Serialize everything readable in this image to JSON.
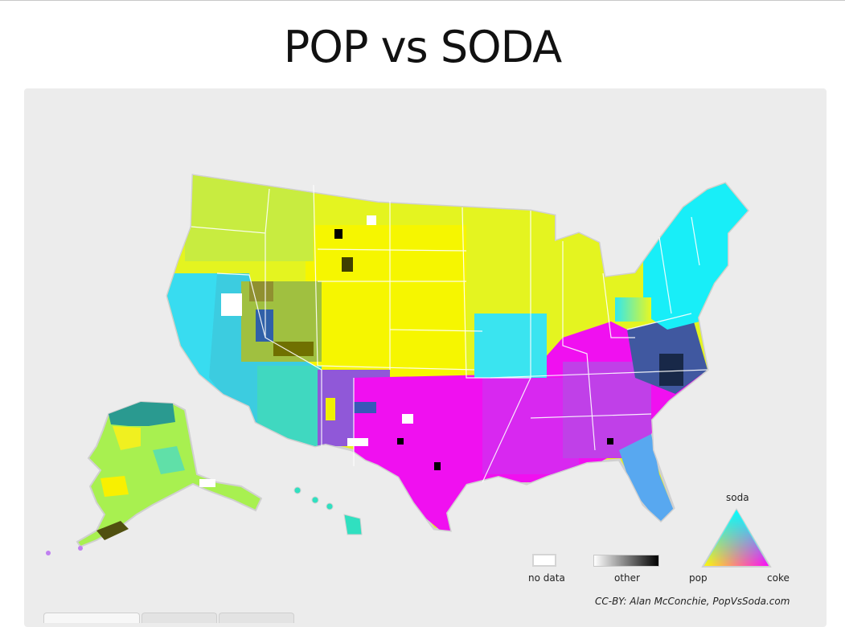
{
  "title": "POP vs SODA",
  "legend": {
    "no_data": "no data",
    "other": "other",
    "soda": "soda",
    "pop": "pop",
    "coke": "coke"
  },
  "colors": {
    "pop": "#ffff00",
    "soda": "#00ffff",
    "coke": "#ff00ff",
    "other": "#000000",
    "no_data": "#ffffff",
    "background": "#ececec"
  },
  "regions": [
    {
      "name": "pacific-northwest",
      "term": "pop",
      "color": "#c8f040"
    },
    {
      "name": "mountain-north",
      "term": "pop",
      "color": "#d8f020"
    },
    {
      "name": "great-plains",
      "term": "pop",
      "color": "#f0f000"
    },
    {
      "name": "midwest",
      "term": "pop",
      "color": "#e8f820"
    },
    {
      "name": "california",
      "term": "soda",
      "color": "#30e0f0"
    },
    {
      "name": "southwest",
      "term": "soda",
      "color": "#40d8c8"
    },
    {
      "name": "northeast",
      "term": "soda",
      "color": "#10f0f8"
    },
    {
      "name": "st-louis-area",
      "term": "soda",
      "color": "#40e0f0"
    },
    {
      "name": "texas-oklahoma",
      "term": "coke",
      "color": "#f010f0"
    },
    {
      "name": "deep-south",
      "term": "coke",
      "color": "#e020f0"
    },
    {
      "name": "florida",
      "term": "soda",
      "color": "#50b8f0"
    },
    {
      "name": "alaska",
      "term": "pop",
      "color": "#a8f050"
    },
    {
      "name": "hawaii",
      "term": "soda",
      "color": "#30e0c0"
    }
  ],
  "credit": "CC-BY: Alan McConchie, PopVsSoda.com",
  "tabs": [
    "",
    "",
    ""
  ]
}
